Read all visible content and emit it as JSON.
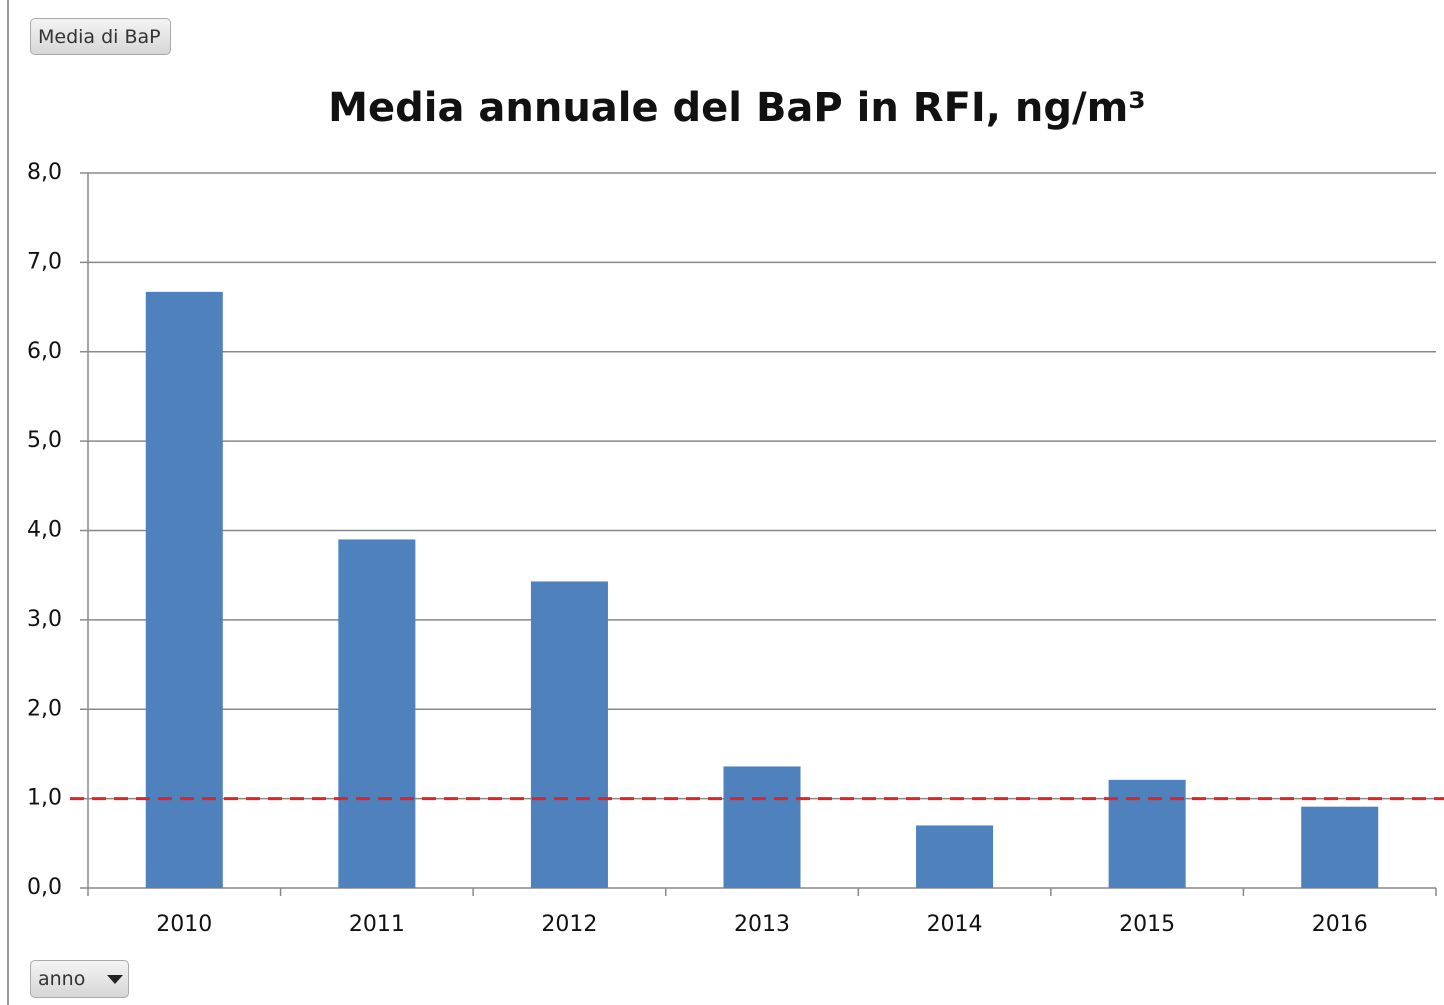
{
  "buttons": {
    "value_field": "Media di BaP",
    "axis_field": "anno"
  },
  "chart_data": {
    "type": "bar",
    "title": "Media annuale del BaP in RFI, ng/m³",
    "categories": [
      "2010",
      "2011",
      "2012",
      "2013",
      "2014",
      "2015",
      "2016"
    ],
    "values": [
      6.67,
      3.9,
      3.43,
      1.36,
      0.7,
      1.21,
      0.91
    ],
    "color": "#4f81bd",
    "ylim": [
      0,
      8
    ],
    "yticks": [
      {
        "value": 0,
        "label": "0,0"
      },
      {
        "value": 1,
        "label": "1,0"
      },
      {
        "value": 2,
        "label": "2,0"
      },
      {
        "value": 3,
        "label": "3,0"
      },
      {
        "value": 4,
        "label": "4,0"
      },
      {
        "value": 5,
        "label": "5,0"
      },
      {
        "value": 6,
        "label": "6,0"
      },
      {
        "value": 7,
        "label": "7,0"
      },
      {
        "value": 8,
        "label": "8,0"
      }
    ],
    "grid": true,
    "reference_line": {
      "value": 1,
      "color": "#e32222"
    }
  }
}
